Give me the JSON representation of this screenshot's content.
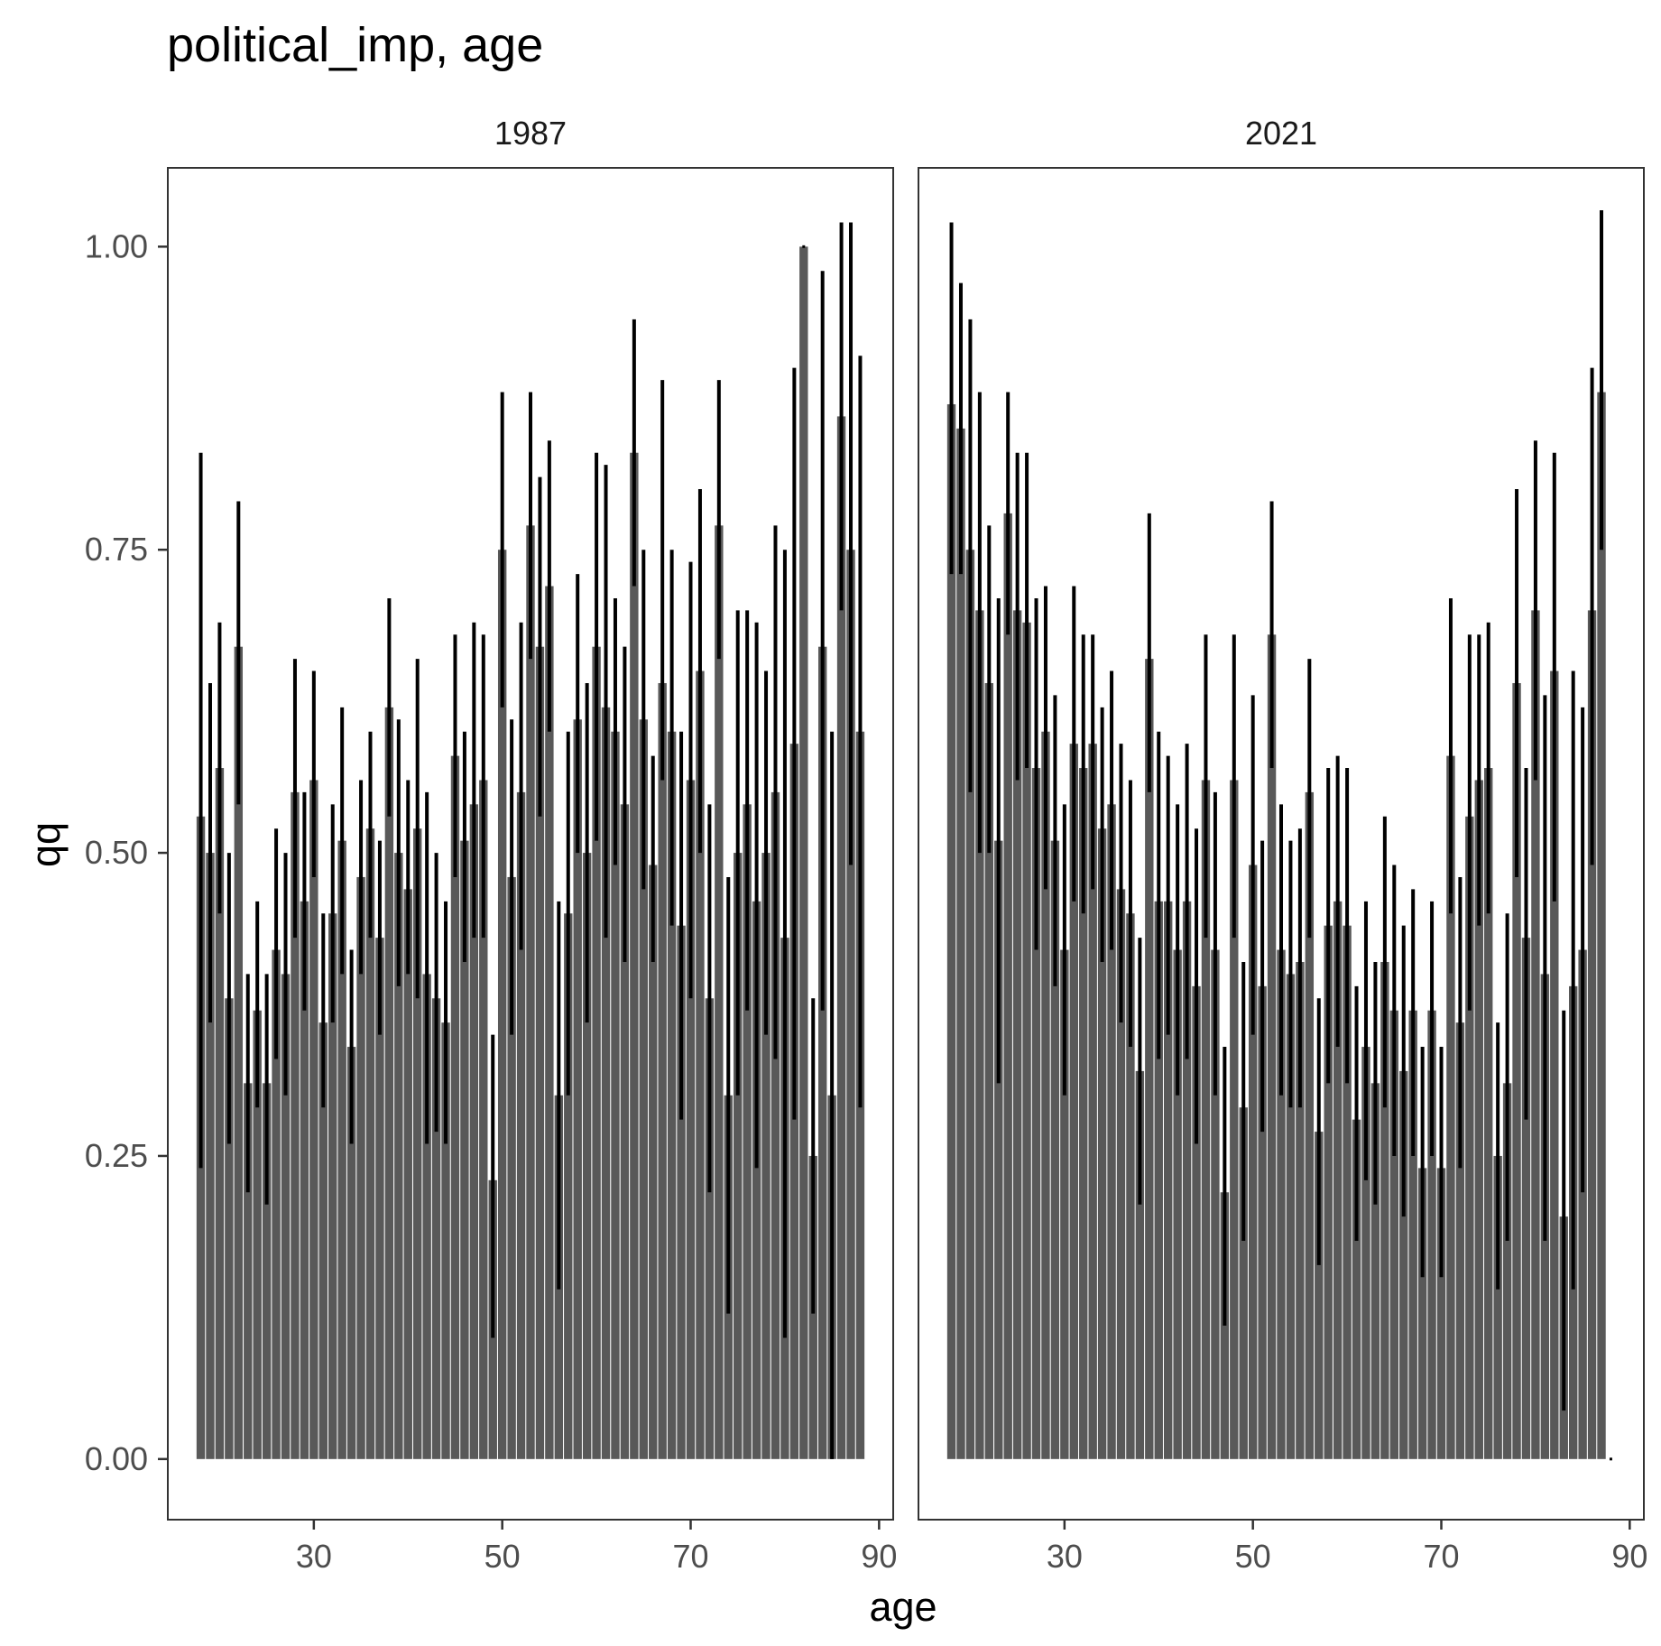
{
  "chart_data": {
    "type": "bar",
    "title": "political_imp, age",
    "xlabel": "age",
    "ylabel": "qq",
    "x_ticks": [
      30,
      50,
      70,
      90
    ],
    "y_ticks": [
      "0.00",
      "0.25",
      "0.50",
      "0.75",
      "1.00"
    ],
    "xlim": [
      14.5,
      91.5
    ],
    "ylim": [
      -0.05,
      1.065
    ],
    "grid": false,
    "legend": "none",
    "bar_color": "#595959",
    "errorbar_color": "#000000",
    "panels": [
      {
        "label": "1987",
        "ages": [
          18,
          19,
          20,
          21,
          22,
          23,
          24,
          25,
          26,
          27,
          28,
          29,
          30,
          31,
          32,
          33,
          34,
          35,
          36,
          37,
          38,
          39,
          40,
          41,
          42,
          43,
          44,
          45,
          46,
          47,
          48,
          49,
          50,
          51,
          52,
          53,
          54,
          55,
          56,
          57,
          58,
          59,
          60,
          61,
          62,
          63,
          64,
          65,
          66,
          67,
          68,
          69,
          70,
          71,
          72,
          73,
          74,
          75,
          76,
          77,
          78,
          79,
          80,
          81,
          82,
          83,
          84,
          85,
          86,
          87,
          88
        ],
        "values": [
          0.53,
          0.5,
          0.57,
          0.38,
          0.67,
          0.31,
          0.37,
          0.31,
          0.42,
          0.4,
          0.55,
          0.46,
          0.56,
          0.36,
          0.45,
          0.51,
          0.34,
          0.48,
          0.52,
          0.43,
          0.62,
          0.5,
          0.47,
          0.52,
          0.4,
          0.38,
          0.36,
          0.58,
          0.51,
          0.54,
          0.56,
          0.23,
          0.75,
          0.48,
          0.55,
          0.77,
          0.67,
          0.72,
          0.3,
          0.45,
          0.61,
          0.5,
          0.67,
          0.62,
          0.6,
          0.54,
          0.83,
          0.61,
          0.49,
          0.64,
          0.6,
          0.44,
          0.56,
          0.65,
          0.38,
          0.77,
          0.3,
          0.5,
          0.54,
          0.46,
          0.5,
          0.55,
          0.43,
          0.59,
          1.0,
          0.25,
          0.67,
          0.3,
          0.86,
          0.75,
          0.6
        ],
        "lower": [
          0.24,
          0.36,
          0.45,
          0.26,
          0.54,
          0.22,
          0.29,
          0.21,
          0.33,
          0.3,
          0.43,
          0.37,
          0.48,
          0.29,
          0.36,
          0.4,
          0.26,
          0.4,
          0.43,
          0.35,
          0.53,
          0.39,
          0.4,
          0.38,
          0.26,
          0.27,
          0.26,
          0.48,
          0.41,
          0.43,
          0.43,
          0.1,
          0.62,
          0.35,
          0.42,
          0.66,
          0.53,
          0.6,
          0.14,
          0.3,
          0.5,
          0.36,
          0.51,
          0.43,
          0.49,
          0.41,
          0.72,
          0.47,
          0.41,
          0.56,
          0.44,
          0.28,
          0.38,
          0.5,
          0.22,
          0.66,
          0.12,
          0.3,
          0.37,
          0.24,
          0.35,
          0.33,
          0.1,
          0.28,
          1.0,
          0.12,
          0.37,
          0.0,
          0.7,
          0.49,
          0.29
        ],
        "upper": [
          0.83,
          0.64,
          0.69,
          0.5,
          0.79,
          0.4,
          0.46,
          0.4,
          0.52,
          0.5,
          0.66,
          0.55,
          0.65,
          0.45,
          0.54,
          0.62,
          0.42,
          0.56,
          0.6,
          0.51,
          0.71,
          0.61,
          0.56,
          0.66,
          0.55,
          0.5,
          0.46,
          0.68,
          0.6,
          0.69,
          0.68,
          0.35,
          0.88,
          0.61,
          0.69,
          0.88,
          0.81,
          0.84,
          0.46,
          0.6,
          0.73,
          0.64,
          0.83,
          0.82,
          0.71,
          0.67,
          0.94,
          0.75,
          0.58,
          0.89,
          0.75,
          0.6,
          0.74,
          0.8,
          0.54,
          0.89,
          0.48,
          0.7,
          0.7,
          0.69,
          0.65,
          0.77,
          0.75,
          0.9,
          1.0,
          0.38,
          0.98,
          0.6,
          1.02,
          1.02,
          0.91
        ]
      },
      {
        "label": "2021",
        "ages": [
          18,
          19,
          20,
          21,
          22,
          23,
          24,
          25,
          26,
          27,
          28,
          29,
          30,
          31,
          32,
          33,
          34,
          35,
          36,
          37,
          38,
          39,
          40,
          41,
          42,
          43,
          44,
          45,
          46,
          47,
          48,
          49,
          50,
          51,
          52,
          53,
          54,
          55,
          56,
          57,
          58,
          59,
          60,
          61,
          62,
          63,
          64,
          65,
          66,
          67,
          68,
          69,
          70,
          71,
          72,
          73,
          74,
          75,
          76,
          77,
          78,
          79,
          80,
          81,
          82,
          83,
          84,
          85,
          86,
          87,
          88
        ],
        "values": [
          0.87,
          0.85,
          0.75,
          0.7,
          0.64,
          0.51,
          0.78,
          0.7,
          0.69,
          0.57,
          0.6,
          0.51,
          0.42,
          0.59,
          0.57,
          0.59,
          0.52,
          0.54,
          0.47,
          0.45,
          0.32,
          0.66,
          0.46,
          0.46,
          0.42,
          0.46,
          0.39,
          0.56,
          0.42,
          0.22,
          0.56,
          0.29,
          0.49,
          0.39,
          0.68,
          0.42,
          0.4,
          0.41,
          0.55,
          0.27,
          0.44,
          0.46,
          0.44,
          0.28,
          0.34,
          0.31,
          0.41,
          0.37,
          0.32,
          0.37,
          0.24,
          0.37,
          0.24,
          0.58,
          0.36,
          0.53,
          0.56,
          0.57,
          0.25,
          0.31,
          0.64,
          0.43,
          0.7,
          0.4,
          0.65,
          0.2,
          0.39,
          0.42,
          0.7,
          0.88,
          0.0
        ],
        "lower": [
          0.73,
          0.73,
          0.55,
          0.5,
          0.5,
          0.31,
          0.68,
          0.56,
          0.57,
          0.42,
          0.47,
          0.39,
          0.3,
          0.46,
          0.45,
          0.47,
          0.41,
          0.42,
          0.36,
          0.34,
          0.21,
          0.55,
          0.33,
          0.35,
          0.3,
          0.33,
          0.26,
          0.43,
          0.3,
          0.11,
          0.43,
          0.18,
          0.35,
          0.27,
          0.57,
          0.3,
          0.29,
          0.29,
          0.43,
          0.16,
          0.31,
          0.34,
          0.31,
          0.18,
          0.23,
          0.21,
          0.29,
          0.25,
          0.2,
          0.25,
          0.15,
          0.25,
          0.15,
          0.45,
          0.24,
          0.37,
          0.44,
          0.45,
          0.14,
          0.18,
          0.48,
          0.28,
          0.56,
          0.18,
          0.46,
          0.04,
          0.14,
          0.22,
          0.49,
          0.75,
          0.0
        ],
        "upper": [
          1.02,
          0.97,
          0.94,
          0.88,
          0.77,
          0.71,
          0.88,
          0.83,
          0.83,
          0.71,
          0.72,
          0.63,
          0.54,
          0.72,
          0.68,
          0.68,
          0.62,
          0.65,
          0.59,
          0.56,
          0.43,
          0.78,
          0.6,
          0.58,
          0.54,
          0.59,
          0.52,
          0.68,
          0.55,
          0.34,
          0.68,
          0.41,
          0.63,
          0.51,
          0.79,
          0.54,
          0.51,
          0.52,
          0.66,
          0.38,
          0.57,
          0.58,
          0.57,
          0.39,
          0.46,
          0.41,
          0.53,
          0.49,
          0.44,
          0.47,
          0.34,
          0.46,
          0.34,
          0.71,
          0.48,
          0.68,
          0.68,
          0.69,
          0.36,
          0.45,
          0.8,
          0.57,
          0.84,
          0.63,
          0.83,
          0.37,
          0.65,
          0.62,
          0.9,
          1.03,
          0.0
        ]
      }
    ]
  }
}
